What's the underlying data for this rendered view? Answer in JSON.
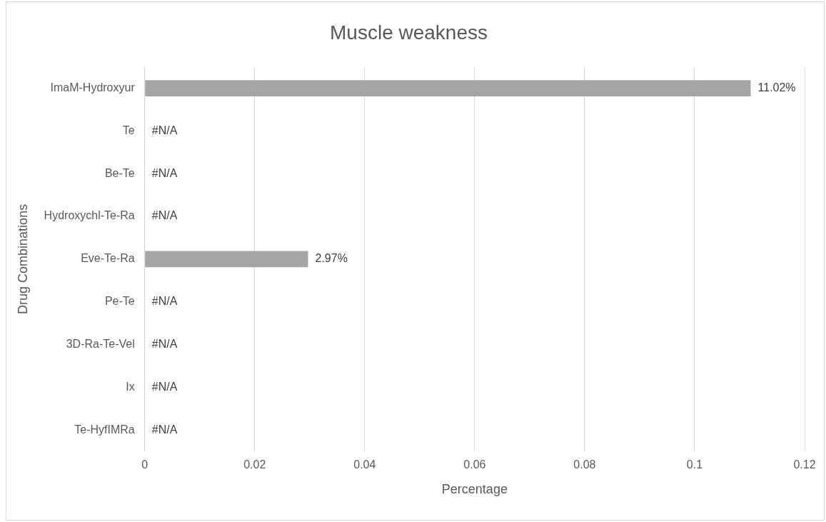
{
  "chart_data": {
    "type": "bar",
    "orientation": "horizontal",
    "title": "Muscle weakness",
    "xlabel": "Percentage",
    "ylabel": "Drug Combinations",
    "categories": [
      "ImaM-Hydroxyur",
      "Te",
      "Be-Te",
      "Hydroxychl-Te-Ra",
      "Eve-Te-Ra",
      "Pe-Te",
      "3D-Ra-Te-Vel",
      "Ix",
      "Te-HyfIMRa"
    ],
    "values": [
      0.1102,
      null,
      null,
      null,
      0.0297,
      null,
      null,
      null,
      null
    ],
    "value_labels": [
      "11.02%",
      "#N/A",
      "#N/A",
      "#N/A",
      "2.97%",
      "#N/A",
      "#N/A",
      "#N/A",
      "#N/A"
    ],
    "color": "#a5a5a5",
    "xlim": [
      0,
      0.12
    ],
    "xticks": [
      0,
      0.02,
      0.04,
      0.06,
      0.08,
      0.1,
      0.12
    ],
    "grid": "x",
    "legend": false
  }
}
